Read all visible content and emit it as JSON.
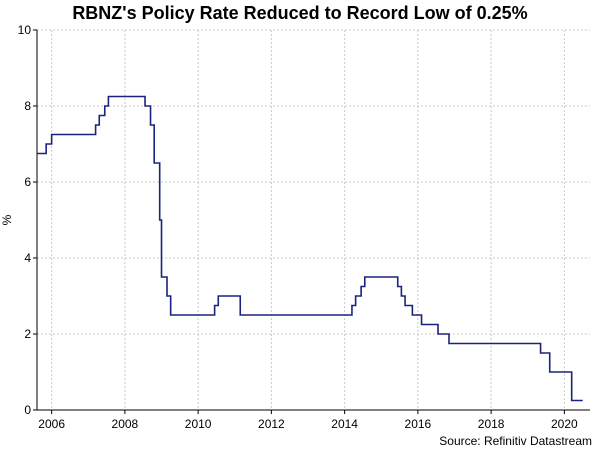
{
  "chart_data": {
    "type": "line",
    "title": "RBNZ's Policy Rate Reduced to Record Low of 0.25%",
    "xlabel": "",
    "ylabel": "%",
    "source": "Source: Refinitiv Datastream",
    "xlim": [
      2005.6,
      2020.7
    ],
    "ylim": [
      0,
      10
    ],
    "x_ticks": [
      2006,
      2008,
      2010,
      2012,
      2014,
      2016,
      2018,
      2020
    ],
    "x_tick_labels": [
      "2006",
      "2008",
      "2010",
      "2012",
      "2014",
      "2016",
      "2018",
      "2020"
    ],
    "y_ticks": [
      0,
      2,
      4,
      6,
      8,
      10
    ],
    "y_tick_labels": [
      "0",
      "2",
      "4",
      "6",
      "8",
      "10"
    ],
    "grid": true,
    "step": true,
    "series": [
      {
        "name": "",
        "color": "#1a237e",
        "points": [
          [
            2005.6,
            6.75
          ],
          [
            2005.85,
            7.0
          ],
          [
            2006.0,
            7.25
          ],
          [
            2007.2,
            7.5
          ],
          [
            2007.3,
            7.75
          ],
          [
            2007.45,
            8.0
          ],
          [
            2007.55,
            8.25
          ],
          [
            2008.55,
            8.0
          ],
          [
            2008.7,
            7.5
          ],
          [
            2008.8,
            6.5
          ],
          [
            2008.95,
            5.0
          ],
          [
            2009.0,
            3.5
          ],
          [
            2009.15,
            3.0
          ],
          [
            2009.25,
            2.5
          ],
          [
            2010.45,
            2.75
          ],
          [
            2010.55,
            3.0
          ],
          [
            2011.15,
            2.5
          ],
          [
            2014.2,
            2.75
          ],
          [
            2014.3,
            3.0
          ],
          [
            2014.45,
            3.25
          ],
          [
            2014.55,
            3.5
          ],
          [
            2015.45,
            3.25
          ],
          [
            2015.55,
            3.0
          ],
          [
            2015.65,
            2.75
          ],
          [
            2015.85,
            2.5
          ],
          [
            2016.1,
            2.25
          ],
          [
            2016.55,
            2.0
          ],
          [
            2016.85,
            1.75
          ],
          [
            2019.35,
            1.5
          ],
          [
            2019.6,
            1.0
          ],
          [
            2020.2,
            0.25
          ],
          [
            2020.5,
            0.25
          ]
        ]
      }
    ]
  }
}
